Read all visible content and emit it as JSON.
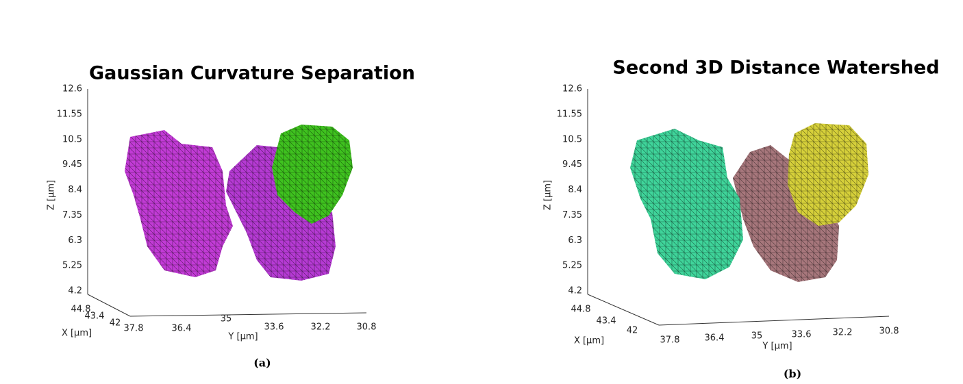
{
  "panels": [
    {
      "title": "Gaussian Curvature Separation",
      "z_label": "Z [μm]",
      "z_ticks": [
        "12.6",
        "11.55",
        "10.5",
        "9.45",
        "8.4",
        "7.35",
        "6.3",
        "5.25",
        "4.2"
      ],
      "x_label": "X [μm]",
      "x_ticks": [
        "44.8",
        "43.4",
        "42"
      ],
      "y_label": "Y [μm]",
      "y_ticks": [
        "37.8",
        "36.4",
        "35",
        "33.6",
        "32.2",
        "30.8"
      ],
      "caption": "(a)"
    },
    {
      "title": "Second 3D Distance Watershed",
      "z_label": "Z [μm]",
      "z_ticks": [
        "12.6",
        "11.55",
        "10.5",
        "9.45",
        "8.4",
        "7.35",
        "6.3",
        "5.25",
        "4.2"
      ],
      "x_label": "X [μm]",
      "x_ticks": [
        "44.8",
        "43.4",
        "42"
      ],
      "y_label": "Y [μm]",
      "y_ticks": [
        "37.8",
        "36.4",
        "35",
        "33.6",
        "32.2",
        "30.8"
      ],
      "caption": "(b)"
    }
  ]
}
